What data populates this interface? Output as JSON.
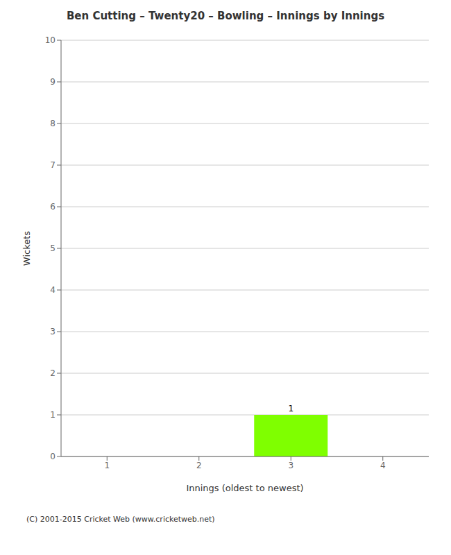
{
  "chart_data": {
    "type": "bar",
    "title": "Ben Cutting – Twenty20 – Bowling – Innings by Innings",
    "x_label": "Innings (oldest to newest)",
    "y_label": "Wickets",
    "categories": [
      "1",
      "2",
      "3",
      "4"
    ],
    "values": [
      0,
      0,
      1,
      0
    ],
    "color": "#7fff00",
    "ylim": [
      0,
      10
    ],
    "yticks": [
      0,
      1,
      2,
      3,
      4,
      5,
      6,
      7,
      8,
      9,
      10
    ],
    "grid": true,
    "data_labels": true,
    "annotations": [
      "(C) 2001-2015 Cricket Web (www.cricketweb.net)"
    ]
  }
}
